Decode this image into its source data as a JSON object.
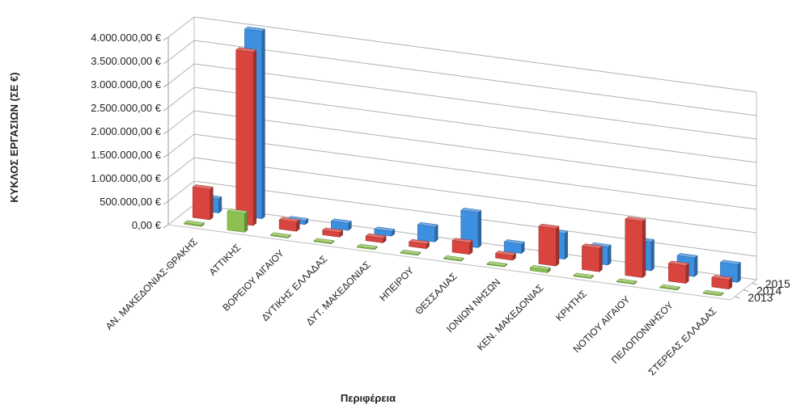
{
  "chart_data": {
    "type": "bar",
    "subtype": "3d-column",
    "title": "",
    "xlabel": "Περιφέρεια",
    "ylabel": "ΚΥΚΛΟΣ ΕΡΓΑΣΙΩΝ (ΣΕ €)",
    "ylim": [
      0,
      4000000
    ],
    "yticks": [
      0,
      500000,
      1000000,
      1500000,
      2000000,
      2500000,
      3000000,
      3500000,
      4000000
    ],
    "ytick_labels": [
      "0,00 €",
      "500.000,00 €",
      "1.000.000,00 €",
      "1.500.000,00 €",
      "2.000.000,00 €",
      "2.500.000,00 €",
      "3.000.000,00 €",
      "3.500.000,00 €",
      "4.000.000,00 €"
    ],
    "grid": true,
    "legend": "none",
    "categories": [
      "ΑΝ. ΜΑΚΕΔΟΝΙΑΣ-ΘΡΑΚΗΣ",
      "ΑΤΤΙΚΗΣ",
      "ΒΟΡΕΙΟΥ ΑΙΓΑΙΟΥ",
      "ΔΥΤΙΚΗΣ ΕΛΛΑΔΑΣ",
      "ΔΥΤ. ΜΑΚΕΔΟΝΙΑΣ",
      "ΗΠΕΙΡΟΥ",
      "ΘΕΣΣΑΛΙΑΣ",
      "ΙΟΝΙΩΝ ΝΗΣΩΝ",
      "ΚΕΝ. ΜΑΚΕΔΟΝΙΑΣ",
      "ΚΡΗΤΗΣ",
      "ΝΟΤΙΟΥ ΑΙΓΑΙΟΥ",
      "ΠΕΛΟΠΟΝΝΗΣΟΥ",
      "ΣΤΕΡΕΑΣ ΕΛΛΑΔΑΣ"
    ],
    "series": [
      {
        "name": "2013",
        "color": "#8CC152",
        "values": [
          30000,
          400000,
          20000,
          20000,
          20000,
          20000,
          20000,
          20000,
          60000,
          20000,
          20000,
          20000,
          20000
        ]
      },
      {
        "name": "2014",
        "color": "#D9443F",
        "values": [
          650000,
          3700000,
          200000,
          100000,
          100000,
          100000,
          250000,
          100000,
          800000,
          500000,
          1200000,
          380000,
          200000
        ]
      },
      {
        "name": "2015",
        "color": "#3D8FE0",
        "values": [
          300000,
          4000000,
          80000,
          150000,
          100000,
          320000,
          750000,
          200000,
          550000,
          380000,
          620000,
          400000,
          380000
        ]
      }
    ]
  }
}
